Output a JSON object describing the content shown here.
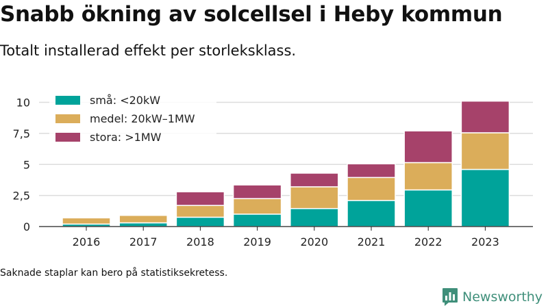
{
  "title": "Snabb ökning av solcellsel i Heby kommun",
  "subtitle": "Totalt installerad effekt per storleksklass.",
  "note": "Saknade staplar kan bero på statistiksekretess.",
  "brand": {
    "name": "Newsworthy",
    "icon": "newsworthy-logo-icon",
    "color": "#3f8f7a"
  },
  "chart_data": {
    "type": "bar",
    "stacked": true,
    "categories": [
      "2016",
      "2017",
      "2018",
      "2019",
      "2020",
      "2021",
      "2022",
      "2023"
    ],
    "series": [
      {
        "name": "små: <20kW",
        "color": "#00a39a",
        "values": [
          0.2,
          0.3,
          0.75,
          1.0,
          1.45,
          2.1,
          2.95,
          4.6
        ]
      },
      {
        "name": "medel: 20kW–1MW",
        "color": "#dbad5a",
        "values": [
          0.5,
          0.6,
          0.95,
          1.25,
          1.75,
          1.85,
          2.2,
          2.95
        ]
      },
      {
        "name": "stora: >1MW",
        "color": "#a6426a",
        "values": [
          0,
          0,
          1.1,
          1.1,
          1.1,
          1.1,
          2.55,
          2.55
        ]
      }
    ],
    "yticks": [
      "0",
      "2,5",
      "5",
      "7,5",
      "10"
    ],
    "ylim": [
      0,
      10.8
    ],
    "grid": true,
    "legend": "top-left"
  }
}
